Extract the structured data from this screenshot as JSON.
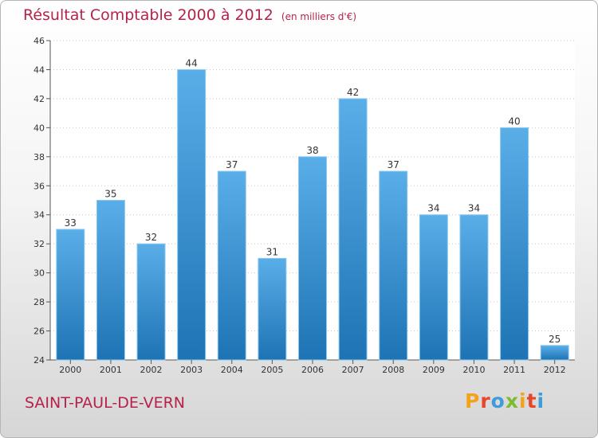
{
  "header": {
    "title": "Résultat Comptable 2000 à 2012",
    "subtitle": "(en milliers d'€)"
  },
  "footer": {
    "commune": "SAINT-PAUL-DE-VERN",
    "logo_text": "Proxiti"
  },
  "colors": {
    "title": "#b5224a",
    "bar_top": "#5aaee8",
    "bar_bottom": "#1e73b4",
    "logo": [
      "#f5a21b",
      "#e8462a",
      "#3d9cd9",
      "#7dbb30",
      "#f5a21b",
      "#e8462a",
      "#3d9cd9"
    ]
  },
  "chart_data": {
    "type": "bar",
    "title": "Résultat Comptable 2000 à 2012",
    "subtitle": "(en milliers d'€)",
    "xlabel": "",
    "ylabel": "",
    "categories": [
      "2000",
      "2001",
      "2002",
      "2003",
      "2004",
      "2005",
      "2006",
      "2007",
      "2008",
      "2009",
      "2010",
      "2011",
      "2012"
    ],
    "values": [
      33,
      35,
      32,
      44,
      37,
      31,
      38,
      42,
      37,
      34,
      34,
      40,
      25
    ],
    "ylim": [
      24,
      46
    ],
    "yticks": [
      24,
      26,
      28,
      30,
      32,
      34,
      36,
      38,
      40,
      42,
      44,
      46
    ],
    "grid": "horizontal-dotted",
    "legend": "none"
  }
}
